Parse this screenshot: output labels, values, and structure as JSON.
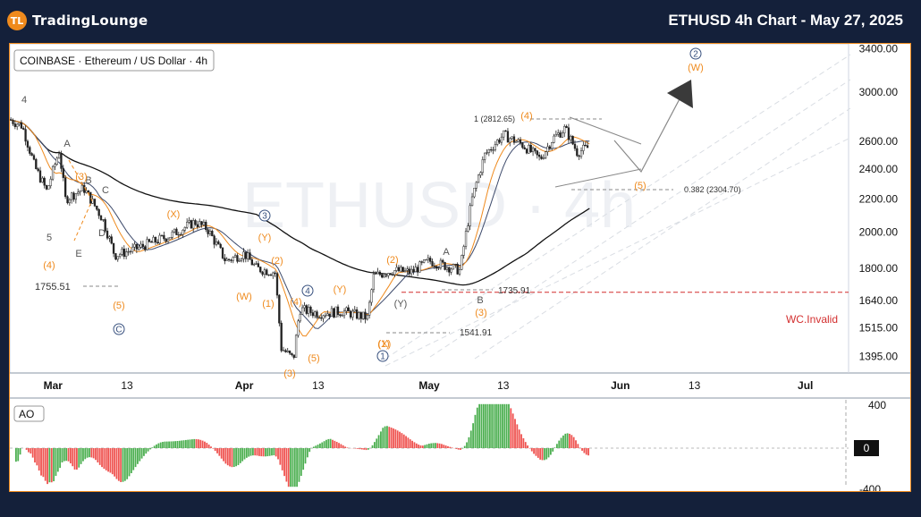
{
  "header": {
    "logo_text": "TradingLounge",
    "title": "ETHUSD 4h Chart - May 27, 2025"
  },
  "chart_data": [
    {
      "type": "line",
      "title": "COINBASE · Ethereum / US Dollar · 4h",
      "watermark": "ETHUSD · 4h",
      "ylim": [
        1330,
        3450
      ],
      "y_scale": "log",
      "y_ticks": [
        "3400.00",
        "3000.00",
        "2600.00",
        "2400.00",
        "2200.00",
        "2000.00",
        "1800.00",
        "1640.00",
        "1515.00",
        "1395.00"
      ],
      "x_ticks": [
        "Mar",
        "13",
        "Apr",
        "13",
        "May",
        "13",
        "Jun",
        "13",
        "Jul"
      ],
      "x_tick_dates": [
        "2025-03-01",
        "2025-03-13",
        "2025-04-01",
        "2025-04-13",
        "2025-05-01",
        "2025-05-13",
        "2025-06-01",
        "2025-06-13",
        "2025-07-01"
      ],
      "xlim": [
        "2025-02-22",
        "2025-07-08"
      ],
      "price_path": [
        [
          "2025-02-22",
          2770
        ],
        [
          "2025-02-24",
          2720
        ],
        [
          "2025-02-26",
          2420
        ],
        [
          "2025-02-28",
          2250
        ],
        [
          "2025-03-02",
          2530
        ],
        [
          "2025-03-03",
          2200
        ],
        [
          "2025-03-06",
          2270
        ],
        [
          "2025-03-09",
          2080
        ],
        [
          "2025-03-11",
          1870
        ],
        [
          "2025-03-14",
          1900
        ],
        [
          "2025-03-17",
          1940
        ],
        [
          "2025-03-20",
          1980
        ],
        [
          "2025-03-24",
          2060
        ],
        [
          "2025-03-26",
          2020
        ],
        [
          "2025-03-29",
          1840
        ],
        [
          "2025-04-01",
          1880
        ],
        [
          "2025-04-03",
          1800
        ],
        [
          "2025-04-06",
          1780
        ],
        [
          "2025-04-07",
          1430
        ],
        [
          "2025-04-09",
          1385
        ],
        [
          "2025-04-10",
          1600
        ],
        [
          "2025-04-13",
          1580
        ],
        [
          "2025-04-17",
          1590
        ],
        [
          "2025-04-21",
          1560
        ],
        [
          "2025-04-22",
          1760
        ],
        [
          "2025-04-25",
          1790
        ],
        [
          "2025-04-28",
          1780
        ],
        [
          "2025-05-01",
          1840
        ],
        [
          "2025-05-04",
          1810
        ],
        [
          "2025-05-06",
          1790
        ],
        [
          "2025-05-08",
          2210
        ],
        [
          "2025-05-10",
          2500
        ],
        [
          "2025-05-13",
          2650
        ],
        [
          "2025-05-16",
          2580
        ],
        [
          "2025-05-19",
          2470
        ],
        [
          "2025-05-21",
          2620
        ],
        [
          "2025-05-23",
          2700
        ],
        [
          "2025-05-25",
          2520
        ],
        [
          "2025-05-27",
          2560
        ]
      ],
      "annotations": {
        "price_labels": [
          "1755.51",
          "1735.91",
          "1541.91",
          "1 (2812.65)",
          "0.382 (2304.70)"
        ],
        "invalidation": {
          "label": "WC.Invalid",
          "value": 1680
        },
        "wave_labels": [
          "4",
          "5",
          "A",
          "B",
          "C",
          "D",
          "E",
          "(3)",
          "(4)",
          "(5)",
          "(W)",
          "(X)",
          "(Y)",
          "(1)",
          "(2)",
          "(3)",
          "(4)",
          "(5)",
          "(1)",
          "(2)",
          "(3)",
          "(4)",
          "(5)",
          "(Y)",
          "(W)",
          "(X)",
          "(Y)",
          "A",
          "B",
          "C",
          "3",
          "4",
          "1",
          "2",
          "3"
        ]
      }
    },
    {
      "type": "bar",
      "title": "AO",
      "ylim": [
        -400,
        450
      ],
      "y_ticks": [
        "400",
        "0",
        "-400"
      ],
      "current_value_label": "0"
    }
  ],
  "colors": {
    "up": "#4caf50",
    "down": "#ef5350",
    "orange": "#ef8a1d",
    "circle_label": "#37507e",
    "invalid": "#d32f2f"
  }
}
